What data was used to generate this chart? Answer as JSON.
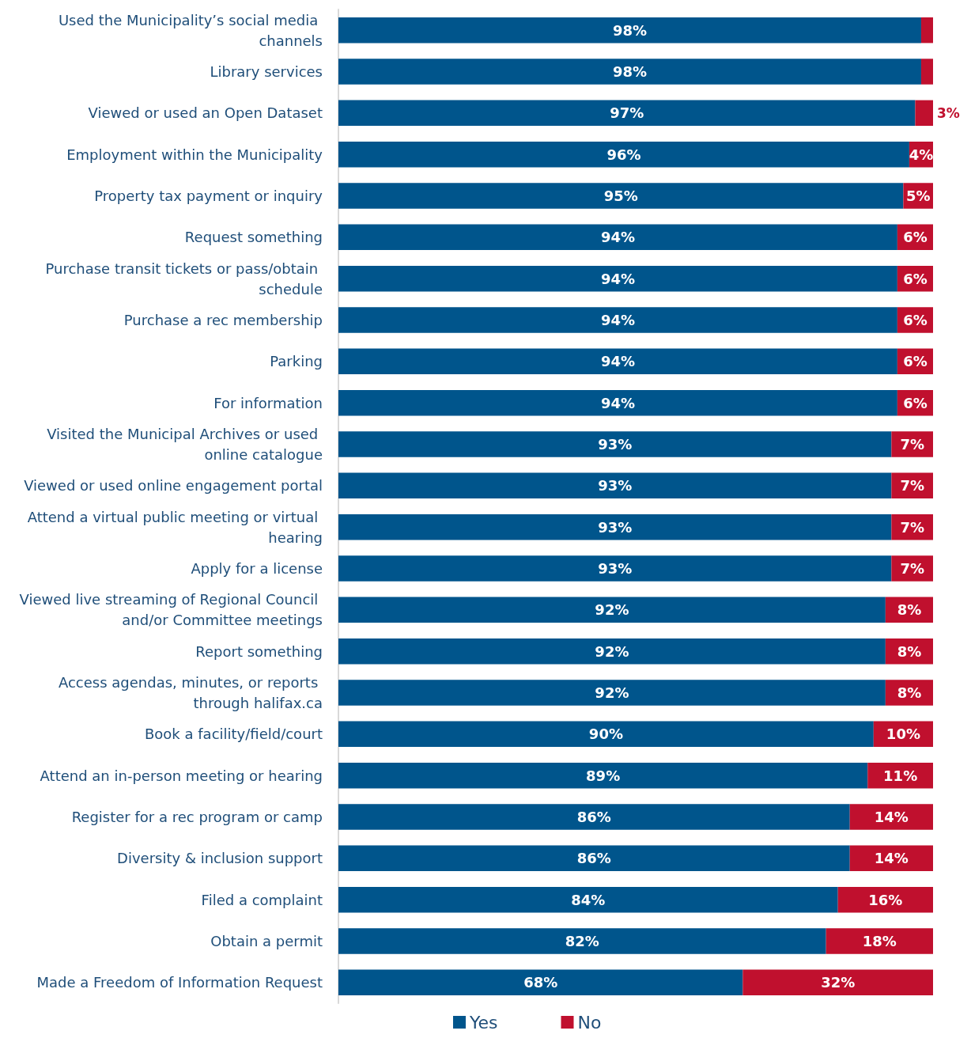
{
  "chart_data": {
    "type": "bar",
    "orientation": "horizontal",
    "stacked": true,
    "legend": "bottom",
    "tick_labels": "y",
    "xlim": [
      0,
      100
    ],
    "categories": [
      "Used the Municipality’s social media channels",
      "Library services",
      "Viewed or used an Open Dataset",
      "Employment within the Municipality",
      "Property tax payment or inquiry",
      "Request something",
      "Purchase transit tickets or pass/obtain schedule",
      "Purchase a rec membership",
      "Parking",
      "For information",
      "Visited the Municipal Archives or used online catalogue",
      "Viewed or used online engagement portal",
      "Attend a virtual public meeting or virtual hearing",
      "Apply for a license",
      "Viewed live streaming of Regional Council and/or Committee meetings",
      "Report something",
      "Access agendas, minutes, or reports through halifax.ca",
      "Book a facility/field/court",
      "Attend an in-person meeting or hearing",
      "Register for a rec program or camp",
      "Diversity & inclusion support",
      "Filed a complaint",
      "Obtain a permit",
      "Made a Freedom of Information Request"
    ],
    "series": [
      {
        "name": "Yes",
        "color": "#00558c",
        "values": [
          98,
          98,
          97,
          96,
          95,
          94,
          94,
          94,
          94,
          94,
          93,
          93,
          93,
          93,
          92,
          92,
          92,
          90,
          89,
          86,
          86,
          84,
          82,
          68
        ],
        "value_labels": [
          "98%",
          "98%",
          "97%",
          "96%",
          "95%",
          "94%",
          "94%",
          "94%",
          "94%",
          "94%",
          "93%",
          "93%",
          "93%",
          "93%",
          "92%",
          "92%",
          "92%",
          "90%",
          "89%",
          "86%",
          "86%",
          "84%",
          "82%",
          "68%"
        ]
      },
      {
        "name": "No",
        "color": "#c0102e",
        "values": [
          2,
          2,
          3,
          4,
          5,
          6,
          6,
          6,
          6,
          6,
          7,
          7,
          7,
          7,
          8,
          8,
          8,
          10,
          11,
          14,
          14,
          16,
          18,
          32
        ],
        "value_labels": [
          null,
          null,
          "3%",
          "4%",
          "5%",
          "6%",
          "6%",
          "6%",
          "6%",
          "6%",
          "7%",
          "7%",
          "7%",
          "7%",
          "8%",
          "8%",
          "8%",
          "10%",
          "11%",
          "14%",
          "14%",
          "16%",
          "18%",
          "32%"
        ]
      }
    ]
  }
}
